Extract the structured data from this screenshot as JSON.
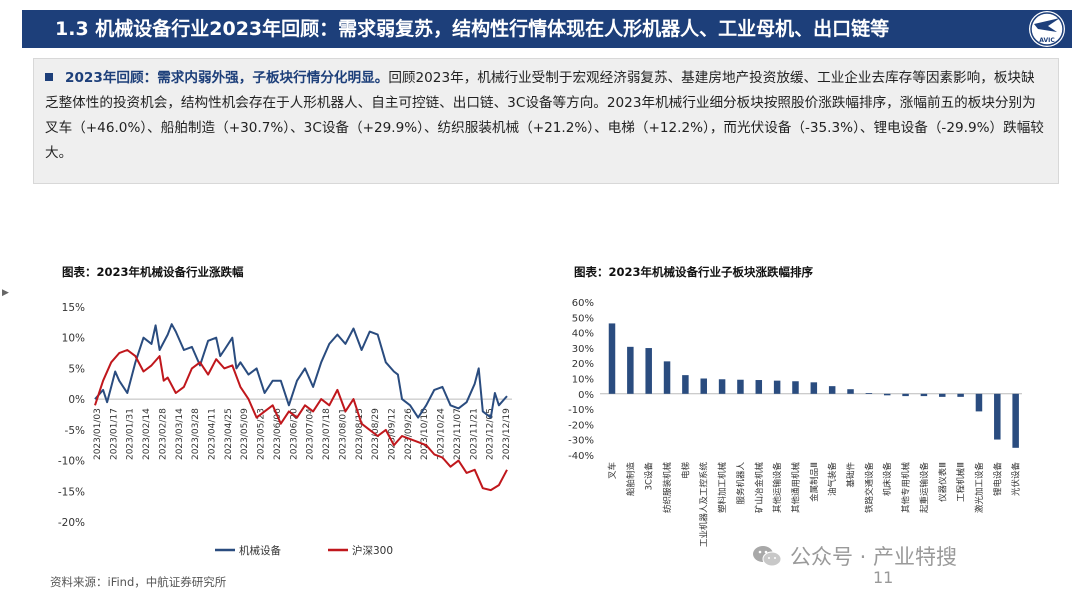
{
  "header": {
    "title": "1.3 机械设备行业2023年回顾：需求弱复苏，结构性行情体现在人形机器人、工业母机、出口链等",
    "logo_text": "AVIC"
  },
  "summary": {
    "lead": "2023年回顾：需求内弱外强，子板块行情分化明显。",
    "body": "回顾2023年，机械行业受制于宏观经济弱复苏、基建房地产投资放缓、工业企业去库存等因素影响，板块缺乏整体性的投资机会，结构性机会存在于人形机器人、自主可控链、出口链、3C设备等方向。2023年机械行业细分板块按照股价涨跌幅排序，涨幅前五的板块分别为叉车（+46.0%）、船舶制造（+30.7%）、3C设备（+29.9%）、纺织服装机械（+21.2%）、电梯（+12.2%），而光伏设备（-35.3%）、锂电设备（-29.9%）跌幅较大。"
  },
  "chart_data": [
    {
      "type": "line",
      "title": "图表：2023年机械设备行业涨跌幅",
      "y_ticks": [
        "15%",
        "10%",
        "5%",
        "0%",
        "-5%",
        "-10%",
        "-15%",
        "-20%"
      ],
      "ylim": [
        -20,
        15
      ],
      "x_ticks": [
        "2023/01/03",
        "2023/01/17",
        "2023/01/31",
        "2023/02/14",
        "2023/02/28",
        "2023/03/14",
        "2023/03/28",
        "2023/04/11",
        "2023/04/25",
        "2023/05/09",
        "2023/05/23",
        "2023/06/06",
        "2023/06/20",
        "2023/07/04",
        "2023/07/18",
        "2023/08/01",
        "2023/08/15",
        "2023/08/29",
        "2023/09/12",
        "2023/09/26",
        "2023/10/10",
        "2023/10/24",
        "2023/11/07",
        "2023/11/21",
        "2023/12/05",
        "2023/12/19"
      ],
      "series": [
        {
          "name": "机械设备",
          "color": "#2a4c7f",
          "points": [
            [
              0,
              0
            ],
            [
              1,
              1.5
            ],
            [
              1.5,
              -0.5
            ],
            [
              2,
              2
            ],
            [
              2.5,
              4.5
            ],
            [
              3,
              3
            ],
            [
              4,
              1
            ],
            [
              5,
              6
            ],
            [
              6,
              10
            ],
            [
              7,
              9
            ],
            [
              7.5,
              12
            ],
            [
              8,
              8
            ],
            [
              9,
              10.5
            ],
            [
              9.5,
              12.2
            ],
            [
              10,
              11
            ],
            [
              11,
              8
            ],
            [
              12,
              8.5
            ],
            [
              13,
              5.5
            ],
            [
              14,
              9.5
            ],
            [
              15,
              10
            ],
            [
              15.5,
              7
            ],
            [
              16,
              8
            ],
            [
              17,
              10
            ],
            [
              17.5,
              5
            ],
            [
              18,
              6
            ],
            [
              19,
              4
            ],
            [
              20,
              5
            ],
            [
              21,
              1
            ],
            [
              22,
              3
            ],
            [
              23,
              3
            ],
            [
              24,
              -1
            ],
            [
              25,
              3
            ],
            [
              26,
              5
            ],
            [
              27,
              2
            ],
            [
              28,
              6
            ],
            [
              29,
              9
            ],
            [
              30,
              10.5
            ],
            [
              31,
              9
            ],
            [
              32,
              11.5
            ],
            [
              33,
              8
            ],
            [
              34,
              11
            ],
            [
              35,
              10.5
            ],
            [
              36,
              6
            ],
            [
              37,
              4.5
            ],
            [
              37.5,
              4
            ],
            [
              38,
              0
            ],
            [
              39,
              -1
            ],
            [
              40,
              -3
            ],
            [
              41,
              -1
            ],
            [
              42,
              1.5
            ],
            [
              43,
              2
            ],
            [
              44,
              -1
            ],
            [
              45,
              -1.5
            ],
            [
              46,
              -0.5
            ],
            [
              47,
              2.5
            ],
            [
              47.5,
              5
            ],
            [
              48,
              -2
            ],
            [
              49,
              -3
            ],
            [
              49.5,
              1
            ],
            [
              50,
              -1
            ],
            [
              51,
              0.5
            ]
          ]
        },
        {
          "name": "沪深300",
          "color": "#c0171c",
          "points": [
            [
              0,
              -1
            ],
            [
              1,
              3
            ],
            [
              2,
              6
            ],
            [
              3,
              7.5
            ],
            [
              4,
              8
            ],
            [
              5,
              7
            ],
            [
              6,
              4.5
            ],
            [
              7,
              5.5
            ],
            [
              8,
              7
            ],
            [
              8.5,
              3
            ],
            [
              9,
              3.5
            ],
            [
              10,
              1
            ],
            [
              11,
              2
            ],
            [
              12,
              5
            ],
            [
              13,
              6
            ],
            [
              14,
              4
            ],
            [
              15,
              6.5
            ],
            [
              16,
              5
            ],
            [
              17,
              5.5
            ],
            [
              18,
              2
            ],
            [
              19,
              0
            ],
            [
              20,
              -3
            ],
            [
              21,
              -2
            ],
            [
              22,
              -1
            ],
            [
              23,
              -4
            ],
            [
              24,
              -2
            ],
            [
              25,
              -3
            ],
            [
              26,
              -1
            ],
            [
              27,
              -2
            ],
            [
              28,
              0
            ],
            [
              29,
              -1
            ],
            [
              30,
              1.5
            ],
            [
              31,
              -2
            ],
            [
              32,
              0
            ],
            [
              33,
              -4
            ],
            [
              34,
              -5
            ],
            [
              35,
              -6
            ],
            [
              36,
              -5
            ],
            [
              37,
              -7.5
            ],
            [
              38,
              -6
            ],
            [
              39,
              -6.5
            ],
            [
              40,
              -7
            ],
            [
              41,
              -7.5
            ],
            [
              42,
              -9
            ],
            [
              43,
              -9.5
            ],
            [
              44,
              -11
            ],
            [
              45,
              -10
            ],
            [
              46,
              -12
            ],
            [
              47,
              -11.5
            ],
            [
              48,
              -14.5
            ],
            [
              49,
              -14.8
            ],
            [
              50,
              -14
            ],
            [
              51,
              -11.5
            ]
          ]
        }
      ],
      "legend": [
        "机械设备",
        "沪深300"
      ]
    },
    {
      "type": "bar",
      "title": "图表：2023年机械设备行业子板块涨跌幅排序",
      "y_ticks": [
        "60%",
        "50%",
        "40%",
        "30%",
        "20%",
        "10%",
        "0%",
        "-10%",
        "-20%",
        "-30%",
        "-40%"
      ],
      "ylim": [
        -40,
        60
      ],
      "categories": [
        "叉车",
        "船舶制造",
        "3C设备",
        "纺织服装机械",
        "电梯",
        "工业机器人及工控系统",
        "塑料加工机械",
        "服务机器人",
        "矿山冶金机械",
        "其他运输设备",
        "其他通用机械",
        "金属制品Ⅲ",
        "油气装备",
        "基础件",
        "铁路交通设备",
        "机床设备",
        "其他专用机械",
        "起重运输设备",
        "仪器仪表Ⅲ",
        "工程机械Ⅲ",
        "激光加工设备",
        "锂电设备",
        "光伏设备"
      ],
      "values": [
        46.0,
        30.7,
        29.9,
        21.2,
        12.2,
        10,
        9.5,
        9.2,
        9,
        8.6,
        8.2,
        7.5,
        5,
        3,
        0.5,
        -1,
        -1.5,
        -1.5,
        -2,
        -2,
        -11.5,
        -29.9,
        -35.3
      ],
      "bar_color": "#2a4c7f"
    }
  ],
  "footer": {
    "source": "资料来源：iFind，中航证券研究所",
    "page": "11",
    "watermark": "公众号 · 产业特搜"
  }
}
